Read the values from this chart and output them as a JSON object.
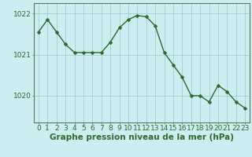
{
  "x": [
    0,
    1,
    2,
    3,
    4,
    5,
    6,
    7,
    8,
    9,
    10,
    11,
    12,
    13,
    14,
    15,
    16,
    17,
    18,
    19,
    20,
    21,
    22,
    23
  ],
  "y": [
    1021.55,
    1021.85,
    1021.55,
    1021.25,
    1021.05,
    1021.05,
    1021.05,
    1021.05,
    1021.3,
    1021.65,
    1021.85,
    1021.95,
    1021.92,
    1021.7,
    1021.05,
    1020.75,
    1020.45,
    1020.0,
    1020.0,
    1019.85,
    1020.25,
    1020.1,
    1019.85,
    1019.7
  ],
  "line_color": "#2d6a2d",
  "marker": "D",
  "marker_size": 2.5,
  "bg_color": "#cceef0",
  "grid_color": "#9dcfcf",
  "xlabel": "Graphe pression niveau de la mer (hPa)",
  "xlabel_fontsize": 7.5,
  "yticks": [
    1020,
    1021,
    1022
  ],
  "ylim": [
    1019.35,
    1022.25
  ],
  "xlim": [
    -0.5,
    23.5
  ],
  "xtick_labels": [
    "0",
    "1",
    "2",
    "3",
    "4",
    "5",
    "6",
    "7",
    "8",
    "9",
    "10",
    "11",
    "12",
    "13",
    "14",
    "15",
    "16",
    "17",
    "18",
    "19",
    "20",
    "21",
    "22",
    "23"
  ],
  "tick_fontsize": 6.5,
  "axis_color": "#2d6a2d",
  "spine_color": "#5a7a5a"
}
